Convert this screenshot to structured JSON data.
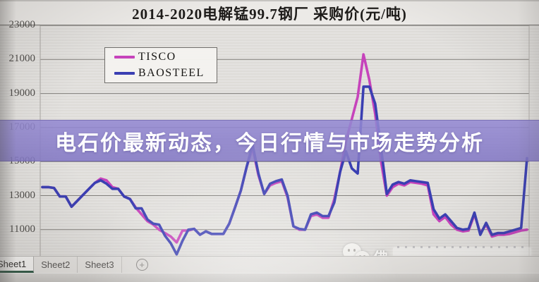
{
  "chart_data": {
    "type": "line",
    "title": "2014-2020电解锰99.7钢厂 采购价(元/吨)",
    "y_ticks": [
      23000,
      21000,
      19000,
      17000,
      15000,
      13000,
      11000
    ],
    "ylim": [
      9000,
      23600
    ],
    "x_axis_note": "monthly points, 2014-2020, x tick labels not visible in image",
    "grid": "horizontal",
    "legend_position": "top-left",
    "series": [
      {
        "name": "TISCO",
        "color": "#c643bb",
        "values": [
          13500,
          13500,
          13450,
          12950,
          12950,
          12350,
          12700,
          13050,
          13400,
          13750,
          14000,
          13900,
          13500,
          13400,
          12950,
          12800,
          12300,
          11900,
          11500,
          11300,
          11000,
          10800,
          10600,
          10250,
          10950,
          10950,
          11050,
          10700,
          10900,
          10750,
          10750,
          10750,
          11350,
          12300,
          13300,
          14700,
          15800,
          14200,
          13100,
          13600,
          13750,
          13850,
          12900,
          11200,
          11000,
          11000,
          11800,
          11900,
          11700,
          11700,
          12800,
          14400,
          16200,
          17500,
          18800,
          21300,
          19800,
          17800,
          15000,
          13000,
          13500,
          13700,
          13600,
          13800,
          13750,
          13700,
          13600,
          11900,
          11500,
          11750,
          11300,
          11000,
          10900,
          10950,
          11900,
          10800,
          11300,
          10600,
          10700,
          10700,
          10750,
          10850,
          10950,
          11000
        ]
      },
      {
        "name": "BAOSTEEL",
        "color": "#3a3fb2",
        "values": [
          13500,
          13500,
          13450,
          12950,
          12950,
          12350,
          12700,
          13050,
          13400,
          13750,
          13900,
          13700,
          13400,
          13400,
          12950,
          12800,
          12250,
          12250,
          11600,
          11350,
          11300,
          10650,
          10200,
          9550,
          10350,
          11000,
          11050,
          10700,
          10900,
          10750,
          10750,
          10750,
          11350,
          12300,
          13300,
          14700,
          16000,
          14300,
          13100,
          13700,
          13850,
          13950,
          13000,
          11200,
          11050,
          11000,
          11900,
          12000,
          11800,
          11800,
          12600,
          14400,
          15600,
          14600,
          14300,
          19400,
          19400,
          18400,
          15800,
          13100,
          13650,
          13800,
          13700,
          13900,
          13850,
          13800,
          13750,
          12200,
          11650,
          11900,
          11500,
          11100,
          11000,
          11050,
          12000,
          10700,
          11400,
          10700,
          10800,
          10800,
          10900,
          11000,
          11100,
          15200
        ]
      }
    ]
  },
  "banner": {
    "text": "电石价最新动态，今日行情与市场走势分析",
    "background": "#8a7ec9"
  },
  "sheet_bar": {
    "tabs": [
      {
        "label": "Sheet1",
        "active": true
      },
      {
        "label": "Sheet2",
        "active": false
      },
      {
        "label": "Sheet3",
        "active": false
      }
    ],
    "add_button": "+"
  },
  "watermark": {
    "icon": "wechat-icon",
    "text": "佛"
  }
}
